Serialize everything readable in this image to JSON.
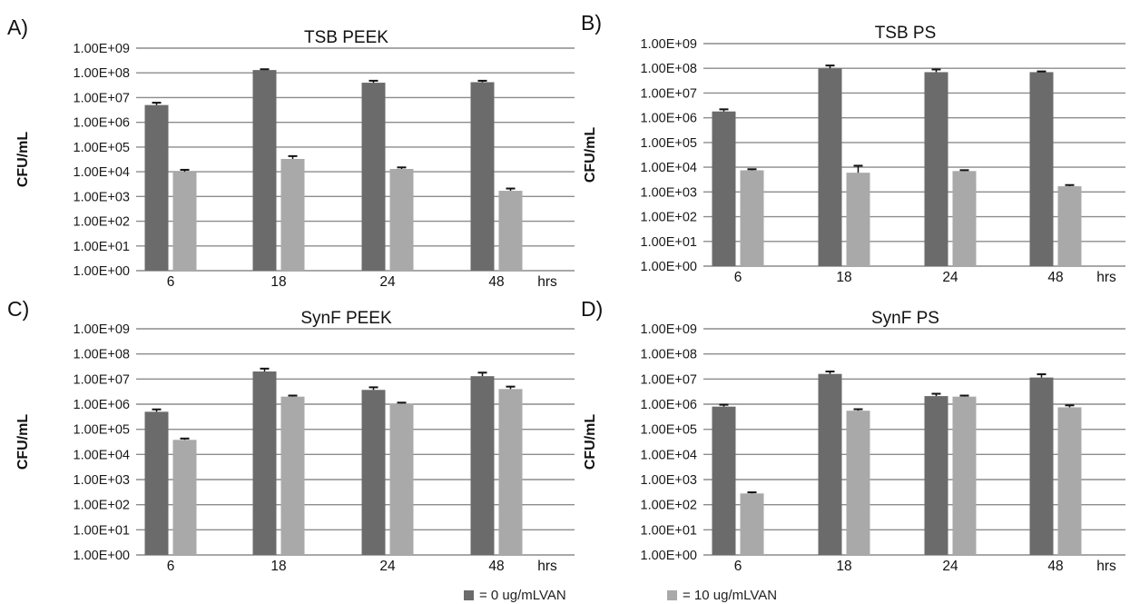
{
  "colors": {
    "series0": "#6b6b6b",
    "series1": "#a9a9a9",
    "grid": "#8c8c8c",
    "error": "#111111"
  },
  "legend": {
    "items": [
      {
        "label": "= 0 ug/mLVAN",
        "color": "#6b6b6b"
      },
      {
        "label": "= 10 ug/mLVAN",
        "color": "#a9a9a9"
      }
    ]
  },
  "chart_data": [
    {
      "type": "bar",
      "panel_label": "A)",
      "title": "TSB PEEK",
      "ylabel": "CFU/mL",
      "x_unit": "hrs",
      "y_scale": "log",
      "ylim": [
        1,
        1000000000
      ],
      "y_ticks": [
        "1.00E+09",
        "1.00E+08",
        "1.00E+07",
        "1.00E+06",
        "1.00E+05",
        "1.00E+04",
        "1.00E+03",
        "1.00E+02",
        "1.00E+01",
        "1.00E+00"
      ],
      "categories": [
        "6",
        "18",
        "24",
        "48"
      ],
      "grid": true,
      "series": [
        {
          "values": [
            5000000,
            130000000,
            40000000,
            42000000
          ],
          "errors": [
            1200000,
            10000000,
            8000000,
            6000000
          ]
        },
        {
          "values": [
            10000,
            33000,
            13000,
            1700
          ],
          "errors": [
            2000,
            10000,
            2000,
            400
          ]
        }
      ]
    },
    {
      "type": "bar",
      "panel_label": "B)",
      "title": "TSB PS",
      "ylabel": "CFU/mL",
      "x_unit": "hrs",
      "y_scale": "log",
      "ylim": [
        1,
        1000000000
      ],
      "y_ticks": [
        "1.00E+09",
        "1.00E+08",
        "1.00E+07",
        "1.00E+06",
        "1.00E+05",
        "1.00E+04",
        "1.00E+03",
        "1.00E+02",
        "1.00E+01",
        "1.00E+00"
      ],
      "categories": [
        "6",
        "18",
        "24",
        "48"
      ],
      "grid": true,
      "series": [
        {
          "values": [
            1800000,
            100000000,
            70000000,
            70000000
          ],
          "errors": [
            400000,
            30000000,
            20000000,
            5000000
          ]
        },
        {
          "values": [
            7500,
            6000,
            7000,
            1700
          ],
          "errors": [
            800,
            5500,
            600,
            200
          ]
        }
      ]
    },
    {
      "type": "bar",
      "panel_label": "C)",
      "title": "SynF PEEK",
      "ylabel": "CFU/mL",
      "x_unit": "hrs",
      "y_scale": "log",
      "ylim": [
        1,
        1000000000
      ],
      "y_ticks": [
        "1.00E+09",
        "1.00E+08",
        "1.00E+07",
        "1.00E+06",
        "1.00E+05",
        "1.00E+04",
        "1.00E+03",
        "1.00E+02",
        "1.00E+01",
        "1.00E+00"
      ],
      "categories": [
        "6",
        "18",
        "24",
        "48"
      ],
      "grid": true,
      "series": [
        {
          "values": [
            500000,
            20000000,
            3700000,
            13000000
          ],
          "errors": [
            120000,
            6000000,
            1000000,
            5000000
          ]
        },
        {
          "values": [
            38000,
            2000000,
            1050000,
            4000000
          ],
          "errors": [
            5000,
            200000,
            100000,
            1000000
          ]
        }
      ]
    },
    {
      "type": "bar",
      "panel_label": "D)",
      "title": "SynF PS",
      "ylabel": "CFU/mL",
      "x_unit": "hrs",
      "y_scale": "log",
      "ylim": [
        1,
        1000000000
      ],
      "y_ticks": [
        "1.00E+09",
        "1.00E+08",
        "1.00E+07",
        "1.00E+06",
        "1.00E+05",
        "1.00E+04",
        "1.00E+03",
        "1.00E+02",
        "1.00E+01",
        "1.00E+00"
      ],
      "categories": [
        "6",
        "18",
        "24",
        "48"
      ],
      "grid": true,
      "series": [
        {
          "values": [
            800000,
            16000000,
            2100000,
            11500000
          ],
          "errors": [
            150000,
            4000000,
            500000,
            4000000
          ]
        },
        {
          "values": [
            280,
            550000,
            2000000,
            750000
          ],
          "errors": [
            30,
            80000,
            200000,
            150000
          ]
        }
      ]
    }
  ]
}
